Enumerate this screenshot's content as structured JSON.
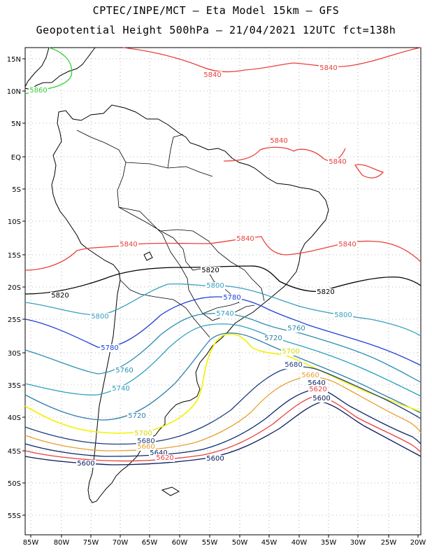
{
  "header": {
    "line1": "CPTEC/INPE/MCT –  Eta Model 15km – GFS",
    "line2": "Geopotential Height 500hPa – 21/04/2021 12UTC fct=138h"
  },
  "axes": {
    "lat_labels": [
      "15N",
      "10N",
      "5N",
      "EQ",
      "5S",
      "10S",
      "15S",
      "20S",
      "25S",
      "30S",
      "35S",
      "40S",
      "45S",
      "50S",
      "55S"
    ],
    "lon_labels": [
      "85W",
      "80W",
      "75W",
      "70W",
      "65W",
      "60W",
      "55W",
      "50W",
      "45W",
      "40W",
      "35W",
      "30W",
      "25W",
      "20W"
    ]
  },
  "contours": [
    {
      "value": "5840",
      "color": "#e8413c"
    },
    {
      "value": "5860",
      "color": "#33cc33"
    },
    {
      "value": "5820",
      "color": "#000000"
    },
    {
      "value": "5800",
      "color": "#3a9ec0"
    },
    {
      "value": "5780",
      "color": "#1f3fd9"
    },
    {
      "value": "5760",
      "color": "#2a8fb0"
    },
    {
      "value": "5740",
      "color": "#2aa0c0"
    },
    {
      "value": "5720",
      "color": "#2e7fa8"
    },
    {
      "value": "5700",
      "color": "#f2f200"
    },
    {
      "value": "5680",
      "color": "#1f3f7f"
    },
    {
      "value": "5660",
      "color": "#e8a030"
    },
    {
      "value": "5640",
      "color": "#0a2a6a"
    },
    {
      "value": "5620",
      "color": "#e8413c"
    },
    {
      "value": "5600",
      "color": "#0a1a5a"
    }
  ],
  "labels": [
    {
      "text": "5840",
      "color": "#e8413c"
    },
    {
      "text": "5840",
      "color": "#e8413c"
    },
    {
      "text": "5840",
      "color": "#e8413c"
    },
    {
      "text": "5840",
      "color": "#e8413c"
    },
    {
      "text": "5840",
      "color": "#e8413c"
    },
    {
      "text": "5840",
      "color": "#e8413c"
    },
    {
      "text": "5840",
      "color": "#e8413c"
    },
    {
      "text": "5860",
      "color": "#33cc33"
    },
    {
      "text": "5820",
      "color": "#000000"
    },
    {
      "text": "5820",
      "color": "#000000"
    },
    {
      "text": "5820",
      "color": "#000000"
    },
    {
      "text": "5800",
      "color": "#3a9ec0"
    },
    {
      "text": "5800",
      "color": "#3a9ec0"
    },
    {
      "text": "5800",
      "color": "#3a9ec0"
    },
    {
      "text": "5780",
      "color": "#1f3fd9"
    },
    {
      "text": "5780",
      "color": "#1f3fd9"
    },
    {
      "text": "5760",
      "color": "#2a8fb0"
    },
    {
      "text": "5760",
      "color": "#2a8fb0"
    },
    {
      "text": "5740",
      "color": "#2aa0c0"
    },
    {
      "text": "5740",
      "color": "#2aa0c0"
    },
    {
      "text": "5720",
      "color": "#2e7fa8"
    },
    {
      "text": "5720",
      "color": "#2e7fa8"
    },
    {
      "text": "5700",
      "color": "#d8d800"
    },
    {
      "text": "5700",
      "color": "#d8d800"
    },
    {
      "text": "5680",
      "color": "#1f3f7f"
    },
    {
      "text": "5680",
      "color": "#1f3f7f"
    },
    {
      "text": "5660",
      "color": "#e8a030"
    },
    {
      "text": "5660",
      "color": "#e8a030"
    },
    {
      "text": "5640",
      "color": "#0a2a6a"
    },
    {
      "text": "5640",
      "color": "#0a2a6a"
    },
    {
      "text": "5620",
      "color": "#e8413c"
    },
    {
      "text": "5620",
      "color": "#e8413c"
    },
    {
      "text": "5600",
      "color": "#0a1a5a"
    },
    {
      "text": "5600",
      "color": "#0a1a5a"
    },
    {
      "text": "5600",
      "color": "#0a1a5a"
    }
  ]
}
